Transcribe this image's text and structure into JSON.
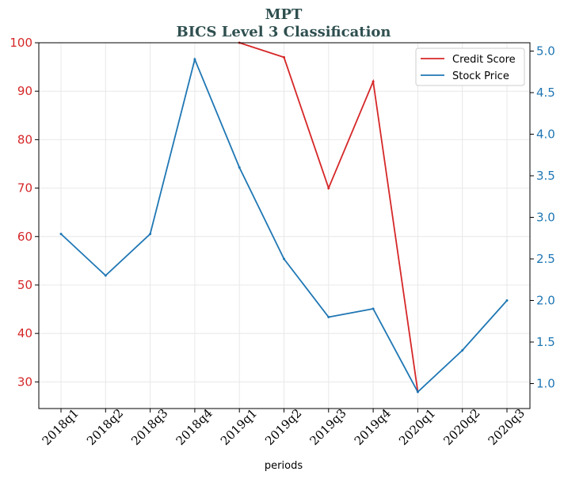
{
  "chart_data": {
    "type": "line",
    "title": "MPT",
    "subtitle": "BICS Level 3 Classification",
    "xlabel": "periods",
    "categories": [
      "2018q1",
      "2018q2",
      "2018q3",
      "2018q4",
      "2019q1",
      "2019q2",
      "2019q3",
      "2019q4",
      "2020q1",
      "2020q2",
      "2020q3"
    ],
    "series": [
      {
        "name": "Credit Score",
        "axis": "left",
        "color": "#d62728",
        "values": [
          null,
          null,
          null,
          null,
          100,
          97,
          70,
          92,
          28,
          null,
          null
        ]
      },
      {
        "name": "Stock Price",
        "axis": "right",
        "color": "#1f77b4",
        "values": [
          2.8,
          2.3,
          2.8,
          4.9,
          3.6,
          2.5,
          1.8,
          1.9,
          0.9,
          1.4,
          2.0
        ]
      }
    ],
    "y_left": {
      "range": [
        24.5,
        100
      ],
      "ticks": [
        "30",
        "40",
        "50",
        "60",
        "70",
        "80",
        "90",
        "100"
      ],
      "color": "#d62728"
    },
    "y_right": {
      "range": [
        0.7,
        5.1
      ],
      "ticks": [
        "1.0",
        "1.5",
        "2.0",
        "2.5",
        "3.0",
        "3.5",
        "4.0",
        "4.5",
        "5.0"
      ],
      "color": "#1f77b4"
    },
    "grid": true,
    "legend_position": "top-right",
    "title_color": "#2f4f4f"
  }
}
